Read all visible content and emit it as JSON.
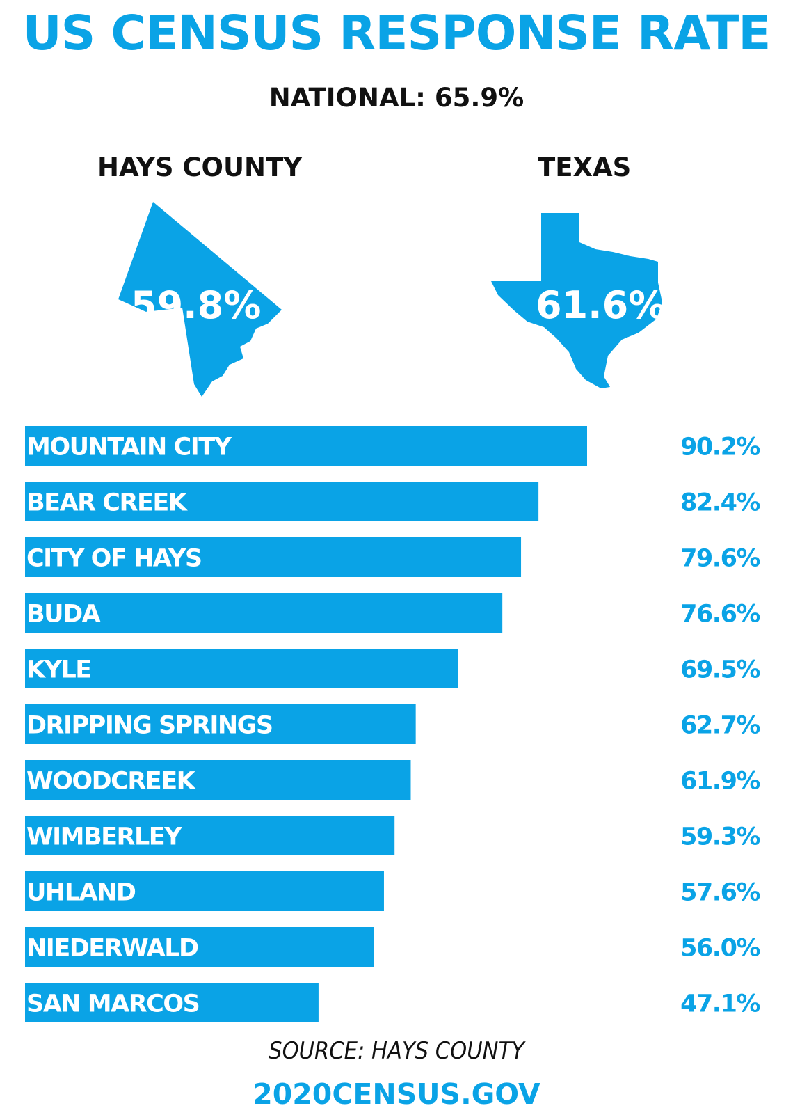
{
  "title": "US CENSUS RESPONSE RATE",
  "national": "NATIONAL: 65.9%",
  "regions": {
    "hays": {
      "label": "HAYS COUNTY",
      "value": "59.8%"
    },
    "texas": {
      "label": "TEXAS",
      "value": "61.6%"
    }
  },
  "colors": {
    "accent": "#0aa3e6",
    "text": "#111111"
  },
  "chart_data": {
    "type": "bar",
    "orientation": "horizontal",
    "categories": [
      "MOUNTAIN CITY",
      "BEAR CREEK",
      "CITY OF HAYS",
      "BUDA",
      "KYLE",
      "DRIPPING SPRINGS",
      "WOODCREEK",
      "WIMBERLEY",
      "UHLAND",
      "NIEDERWALD",
      "SAN MARCOS"
    ],
    "values": [
      90.2,
      82.4,
      79.6,
      76.6,
      69.5,
      62.7,
      61.9,
      59.3,
      57.6,
      56.0,
      47.1
    ],
    "value_labels": [
      "90.2%",
      "82.4%",
      "79.6%",
      "76.6%",
      "69.5%",
      "62.7%",
      "61.9%",
      "59.3%",
      "57.6%",
      "56.0%",
      "47.1%"
    ],
    "xlim": [
      0,
      100
    ]
  },
  "source": "SOURCE: HAYS COUNTY",
  "website": "2020CENSUS.GOV"
}
